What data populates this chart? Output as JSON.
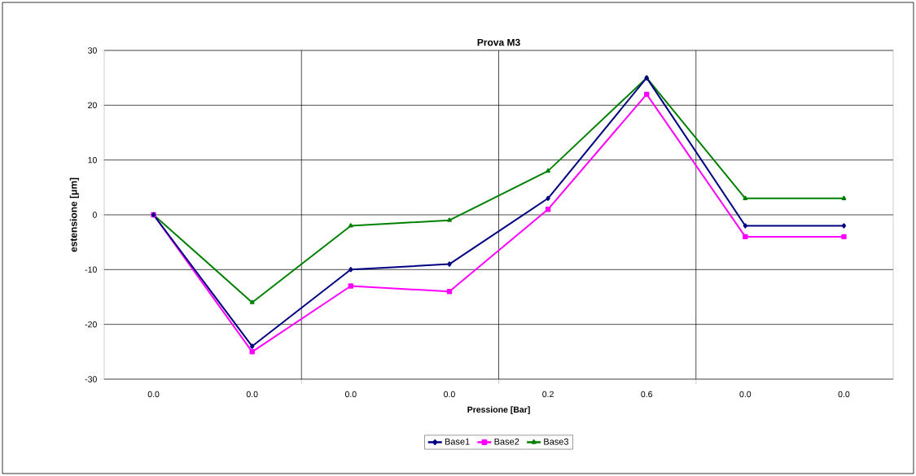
{
  "chart_data": {
    "type": "line",
    "title": "Prova M3",
    "xlabel": "Pressione [Bar]",
    "ylabel": "estensione [μm]",
    "categories": [
      "0.0",
      "0.0",
      "0.0",
      "0.0",
      "0.2",
      "0.6",
      "0.0",
      "0.0"
    ],
    "series": [
      {
        "name": "Base1",
        "color": "#000080",
        "marker": "diamond",
        "values": [
          0,
          -24,
          -10,
          -9,
          3,
          25,
          -2,
          -2
        ]
      },
      {
        "name": "Base2",
        "color": "#ff00ff",
        "marker": "square",
        "values": [
          0,
          -25,
          -13,
          -14,
          1,
          22,
          -4,
          -4
        ]
      },
      {
        "name": "Base3",
        "color": "#008000",
        "marker": "triangle",
        "values": [
          0,
          -16,
          -2,
          -1,
          8,
          25,
          3,
          3
        ]
      }
    ],
    "ylim": [
      -30,
      30
    ],
    "yticks": [
      -30,
      -20,
      -10,
      0,
      10,
      20,
      30
    ],
    "grid": true,
    "legend": "bottom",
    "line_style": "solid"
  }
}
